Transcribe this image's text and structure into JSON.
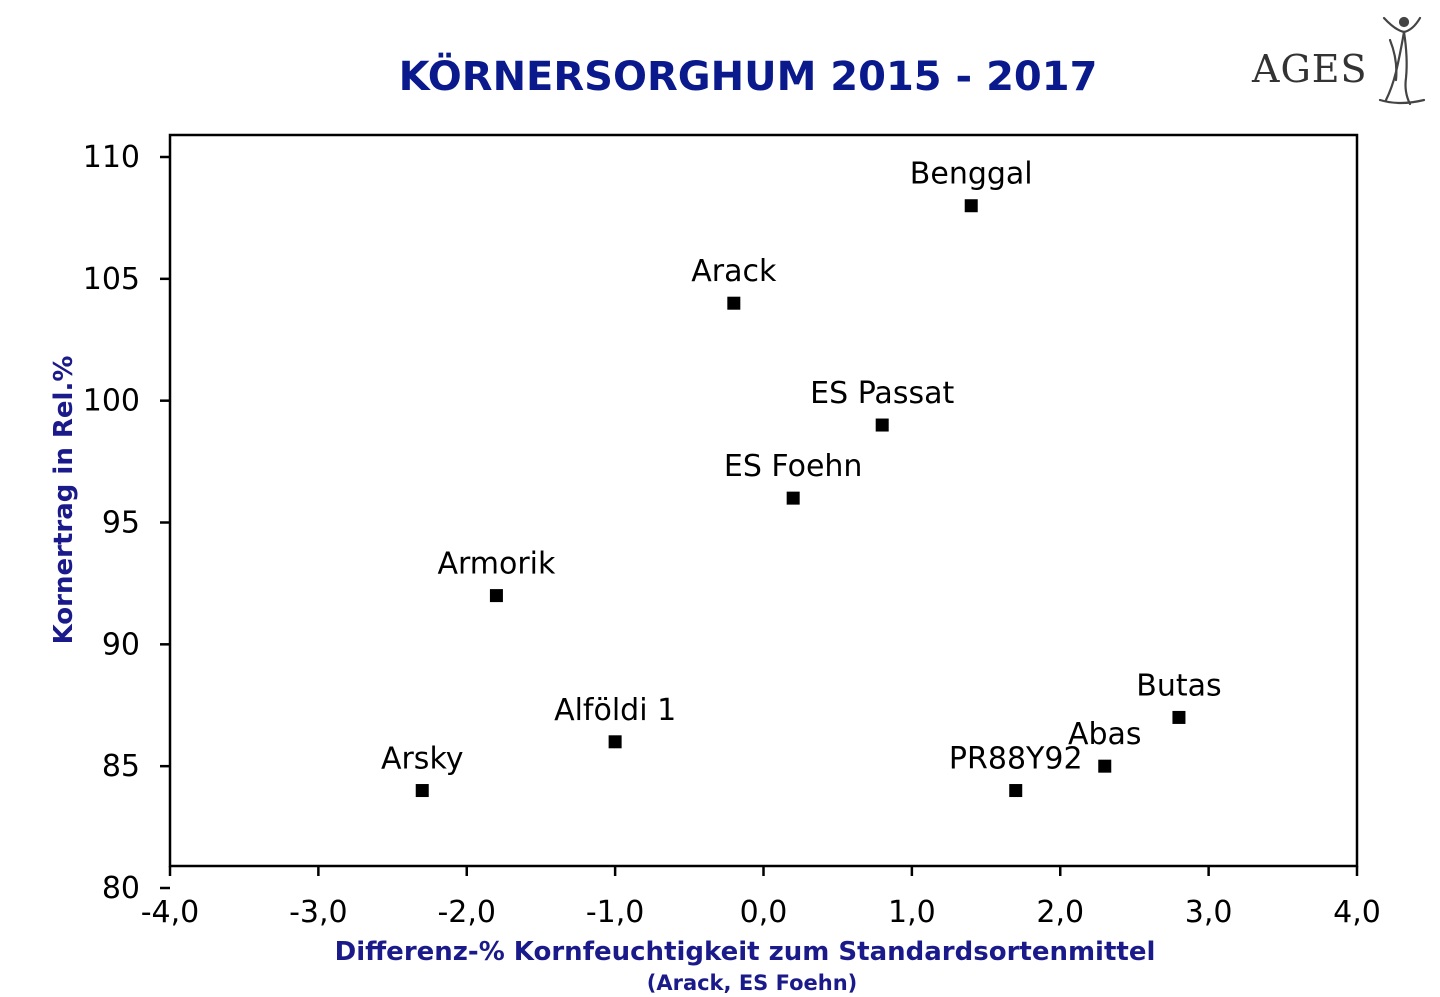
{
  "chart_data": {
    "type": "scatter",
    "title": "KÖRNERSORGHUM 2015 - 2017",
    "xlabel": "Differenz-%  Kornfeuchtigkeit  zum  Standardsortenmittel",
    "xlabel_sub": "(Arack, ES Foehn)",
    "ylabel": "Kornertrag in Rel.%",
    "xlim": [
      -4.0,
      4.0
    ],
    "ylim": [
      80,
      110
    ],
    "x_ticks": [
      -4.0,
      -3.0,
      -2.0,
      -1.0,
      0.0,
      1.0,
      2.0,
      3.0,
      4.0
    ],
    "x_tick_labels": [
      "-4,0",
      "-3,0",
      "-2,0",
      "-1,0",
      "0,0",
      "1,0",
      "2,0",
      "3,0",
      "4,0"
    ],
    "y_ticks": [
      80,
      85,
      90,
      95,
      100,
      105,
      110
    ],
    "y_tick_labels": [
      "80",
      "85",
      "90",
      "95",
      "100",
      "105",
      "110"
    ],
    "grid": false,
    "legend": "none",
    "marker": "square",
    "marker_color": "#000000",
    "points": [
      {
        "label": "Benggal",
        "x": 1.4,
        "y": 108
      },
      {
        "label": "Arack",
        "x": -0.2,
        "y": 104
      },
      {
        "label": "ES Passat",
        "x": 0.8,
        "y": 99
      },
      {
        "label": "ES Foehn",
        "x": 0.2,
        "y": 96
      },
      {
        "label": "Armorik",
        "x": -1.8,
        "y": 92
      },
      {
        "label": "Butas",
        "x": 2.8,
        "y": 87
      },
      {
        "label": "Alföldi 1",
        "x": -1.0,
        "y": 86
      },
      {
        "label": "Abas",
        "x": 2.3,
        "y": 85
      },
      {
        "label": "Arsky",
        "x": -2.3,
        "y": 84
      },
      {
        "label": "PR88Y92",
        "x": 1.7,
        "y": 84
      }
    ]
  },
  "logo": {
    "text": "AGES",
    "icon": "figure-logo-icon"
  },
  "colors": {
    "title": "#0a1a8c",
    "axis_title": "#1a1a8a",
    "marker": "#000000"
  }
}
